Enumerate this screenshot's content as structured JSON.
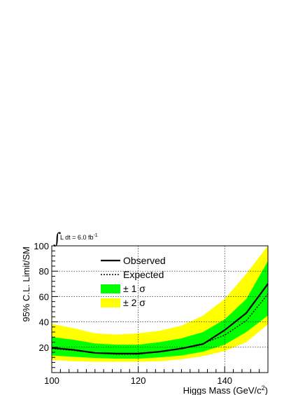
{
  "chart_data": {
    "type": "line",
    "xlabel": "Higgs Mass (GeV/c",
    "xlabel_sup": "2",
    "xlabel_close": ")",
    "ylabel": "95% C.L. Limit/SM",
    "xlim": [
      100,
      150
    ],
    "ylim": [
      0,
      100
    ],
    "x_ticks": [
      100,
      120,
      140
    ],
    "y_ticks": [
      20,
      40,
      60,
      80,
      100
    ],
    "grid": true,
    "annotation": {
      "integral_symbol": "∫",
      "text": "L dt = 6.0 fb",
      "sup": "-1"
    },
    "x": [
      100,
      105,
      110,
      115,
      120,
      125,
      130,
      135,
      140,
      145,
      150
    ],
    "series": [
      {
        "name": "Observed",
        "style": "solid",
        "color": "#000000",
        "values": [
          19.5,
          18,
          15.5,
          15,
          15,
          16.5,
          19,
          22.5,
          33.5,
          47,
          70
        ]
      },
      {
        "name": "Expected",
        "style": "dotted",
        "color": "#000000",
        "values": [
          19,
          17.5,
          15.5,
          14.5,
          14.5,
          16.5,
          19,
          23,
          29.5,
          41,
          62
        ]
      }
    ],
    "bands": [
      {
        "name": "± 2 σ",
        "color": "#ffff00",
        "lower": [
          10,
          9,
          8.5,
          8.5,
          8.5,
          9,
          10.5,
          13,
          17,
          24,
          38
        ],
        "upper": [
          38.5,
          35,
          31,
          30,
          31,
          33,
          37,
          45,
          58,
          78,
          100
        ]
      },
      {
        "name": "± 1 σ",
        "color": "#00ff00",
        "lower": [
          13.5,
          12.5,
          11.5,
          11,
          11,
          12,
          13.5,
          16.5,
          22,
          32,
          45
        ],
        "upper": [
          28,
          26,
          23,
          22,
          22,
          24,
          27,
          32,
          42,
          58,
          88
        ]
      }
    ],
    "legend": [
      {
        "label": "Observed",
        "kind": "line-solid"
      },
      {
        "label": "Expected",
        "kind": "line-dotted"
      },
      {
        "label": "± 1 σ",
        "kind": "fill",
        "color": "#00ff00"
      },
      {
        "label": "± 2 σ",
        "kind": "fill",
        "color": "#ffff00"
      }
    ]
  }
}
